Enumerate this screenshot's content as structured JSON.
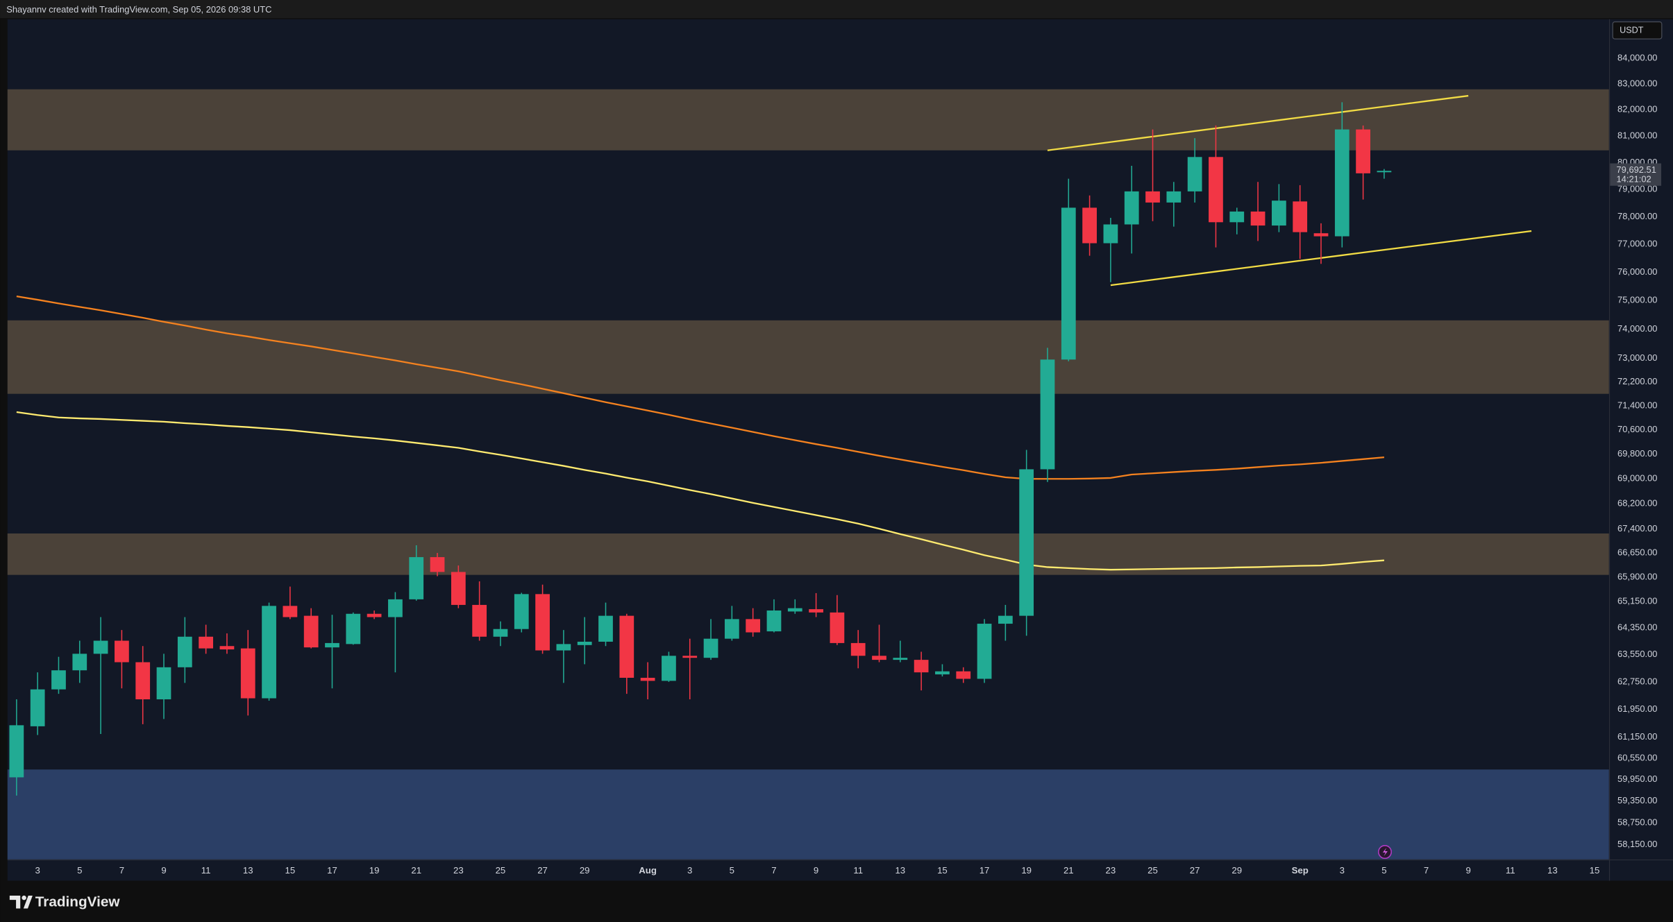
{
  "chart_data": {
    "type": "candlestick",
    "attribution": "Shayannv created with TradingView.com, Sep 05, 2026 09:38 UTC",
    "brand": "TradingView",
    "currency": "USDT",
    "last_price": {
      "value": 79692.51,
      "label": "79,692.51"
    },
    "countdown": "14:21:02",
    "log_scale": true,
    "grid": false,
    "up_color": "#22ab94",
    "down_color": "#f23645",
    "ylim": [
      57750,
      85550
    ],
    "yticks": [
      {
        "value": 84000,
        "label": "84,000.00"
      },
      {
        "value": 83000,
        "label": "83,000.00"
      },
      {
        "value": 82000,
        "label": "82,000.00"
      },
      {
        "value": 81000,
        "label": "81,000.00"
      },
      {
        "value": 80000,
        "label": "80,000.00"
      },
      {
        "value": 79000,
        "label": "79,000.00"
      },
      {
        "value": 78000,
        "label": "78,000.00"
      },
      {
        "value": 77000,
        "label": "77,000.00"
      },
      {
        "value": 76000,
        "label": "76,000.00"
      },
      {
        "value": 75000,
        "label": "75,000.00"
      },
      {
        "value": 74000,
        "label": "74,000.00"
      },
      {
        "value": 73000,
        "label": "73,000.00"
      },
      {
        "value": 72200,
        "label": "72,200.00"
      },
      {
        "value": 71400,
        "label": "71,400.00"
      },
      {
        "value": 70600,
        "label": "70,600.00"
      },
      {
        "value": 69800,
        "label": "69,800.00"
      },
      {
        "value": 69000,
        "label": "69,000.00"
      },
      {
        "value": 68200,
        "label": "68,200.00"
      },
      {
        "value": 67400,
        "label": "67,400.00"
      },
      {
        "value": 66650,
        "label": "66,650.00"
      },
      {
        "value": 65900,
        "label": "65,900.00"
      },
      {
        "value": 65150,
        "label": "65,150.00"
      },
      {
        "value": 64350,
        "label": "64,350.00"
      },
      {
        "value": 63550,
        "label": "63,550.00"
      },
      {
        "value": 62750,
        "label": "62,750.00"
      },
      {
        "value": 61950,
        "label": "61,950.00"
      },
      {
        "value": 61150,
        "label": "61,150.00"
      },
      {
        "value": 60550,
        "label": "60,550.00"
      },
      {
        "value": 59950,
        "label": "59,950.00"
      },
      {
        "value": 59350,
        "label": "59,350.00"
      },
      {
        "value": 58750,
        "label": "58,750.00"
      },
      {
        "value": 58150,
        "label": "58,150.00"
      }
    ],
    "categories": [
      null,
      "3",
      null,
      "5",
      null,
      "7",
      null,
      "9",
      null,
      "11",
      null,
      "13",
      null,
      "15",
      null,
      "17",
      null,
      "19",
      null,
      "21",
      null,
      "23",
      null,
      "25",
      null,
      "27",
      null,
      "29",
      null,
      null,
      "Aug",
      null,
      "3",
      null,
      "5",
      null,
      "7",
      null,
      "9",
      null,
      "11",
      null,
      "13",
      null,
      "15",
      null,
      "17",
      null,
      "19",
      null,
      "21",
      null,
      "23",
      null,
      "25",
      null,
      "27",
      null,
      "29",
      null,
      null,
      "Sep",
      null,
      "3",
      null,
      "5",
      null,
      "7",
      null,
      "9",
      null,
      "11",
      null,
      "13",
      null,
      "15"
    ],
    "open": [
      60010,
      61460,
      62530,
      63090,
      63580,
      63970,
      63330,
      62240,
      63180,
      64090,
      63810,
      63740,
      62270,
      65020,
      64720,
      63770,
      63870,
      64780,
      64680,
      65220,
      66520,
      66060,
      65050,
      64090,
      64320,
      65380,
      63680,
      63840,
      63940,
      64720,
      62870,
      62780,
      63520,
      63460,
      64030,
      64620,
      64250,
      64850,
      64920,
      64820,
      63900,
      63520,
      63400,
      63400,
      62970,
      63060,
      62840,
      64480,
      64720,
      69310,
      72960,
      78330,
      77040,
      77720,
      78930,
      78520,
      78930,
      80210,
      77800,
      78190,
      77680,
      78560,
      77400,
      77290,
      81250,
      79640,
      null,
      null,
      null,
      null,
      null,
      null,
      null,
      null,
      null,
      null
    ],
    "high": [
      62240,
      63030,
      63490,
      63970,
      64680,
      64290,
      63810,
      63580,
      64680,
      64450,
      64190,
      64290,
      65120,
      65610,
      64950,
      64750,
      64820,
      64880,
      65440,
      66890,
      66650,
      66260,
      65770,
      64550,
      65420,
      65670,
      64290,
      64680,
      65120,
      64780,
      63330,
      63640,
      64030,
      64620,
      65020,
      64950,
      65220,
      65220,
      65410,
      65350,
      64290,
      64450,
      63970,
      63640,
      63270,
      63180,
      64620,
      65050,
      69940,
      73360,
      79400,
      78780,
      77960,
      79880,
      81250,
      79280,
      80920,
      81400,
      78330,
      79280,
      79200,
      79160,
      77760,
      82290,
      81400,
      79760,
      null,
      null,
      null,
      null,
      null,
      null,
      null,
      null,
      null,
      null
    ],
    "low": [
      59500,
      61210,
      62400,
      62720,
      61240,
      62560,
      61520,
      61670,
      62720,
      63580,
      63580,
      61770,
      62200,
      64620,
      63740,
      62560,
      63850,
      64620,
      63030,
      65180,
      65930,
      64950,
      63970,
      63810,
      64220,
      63580,
      62720,
      63270,
      63810,
      62400,
      62240,
      62750,
      62240,
      63400,
      63970,
      64090,
      64220,
      64780,
      64680,
      63840,
      63150,
      63330,
      63330,
      62500,
      62910,
      62720,
      62720,
      63970,
      64120,
      68900,
      72900,
      76590,
      75650,
      76670,
      77840,
      77640,
      78520,
      76890,
      77360,
      77120,
      77440,
      76480,
      76300,
      76890,
      78630,
      79400,
      null,
      null,
      null,
      null,
      null,
      null,
      null,
      null,
      null,
      null
    ],
    "close": [
      61490,
      62530,
      63090,
      63580,
      63970,
      63330,
      62240,
      63180,
      64090,
      63740,
      63710,
      62270,
      65020,
      64680,
      63770,
      63900,
      64780,
      64680,
      65220,
      66520,
      66060,
      65050,
      64090,
      64320,
      65380,
      63680,
      63870,
      63940,
      64720,
      62870,
      62780,
      63520,
      63460,
      64030,
      64620,
      64220,
      64880,
      64950,
      64820,
      63900,
      63520,
      63400,
      63460,
      63030,
      63060,
      62840,
      64480,
      64720,
      69310,
      72960,
      78330,
      77040,
      77720,
      78930,
      78520,
      78930,
      80210,
      77800,
      78190,
      77680,
      78590,
      77440,
      77290,
      81250,
      79600,
      79692.51,
      null,
      null,
      null,
      null,
      null,
      null,
      null,
      null,
      null,
      null
    ],
    "zones": [
      {
        "from": 82790,
        "to": 80460,
        "color": "#4b4239"
      },
      {
        "from": 74310,
        "to": 71800,
        "color": "#4b4239"
      },
      {
        "from": 67260,
        "to": 65970,
        "color": "#4b4239"
      },
      {
        "from": 60230,
        "to": 57750,
        "color": "#2b3f66"
      }
    ],
    "lines": [
      {
        "color": "#f5821f",
        "values": [
          75150,
          75030,
          74900,
          74780,
          74660,
          74530,
          74400,
          74260,
          74130,
          73990,
          73860,
          73750,
          73630,
          73520,
          73410,
          73290,
          73170,
          73050,
          72930,
          72800,
          72680,
          72560,
          72410,
          72260,
          72120,
          71970,
          71820,
          71670,
          71520,
          71380,
          71240,
          71100,
          70950,
          70810,
          70670,
          70530,
          70390,
          70260,
          70130,
          70010,
          69880,
          69750,
          69630,
          69510,
          69390,
          69280,
          69160,
          69050,
          69000,
          69000,
          69000,
          69010,
          69030,
          69140,
          69180,
          69220,
          69260,
          69290,
          69330,
          69380,
          69430,
          69470,
          69520,
          69580,
          69640,
          69700,
          null,
          null,
          null,
          null,
          null,
          null,
          null,
          null,
          null,
          null
        ]
      },
      {
        "color": "#ffeb70",
        "values": [
          71190,
          71090,
          71010,
          70980,
          70960,
          70930,
          70900,
          70870,
          70820,
          70780,
          70730,
          70690,
          70640,
          70590,
          70520,
          70450,
          70380,
          70320,
          70250,
          70170,
          70090,
          70010,
          69890,
          69780,
          69660,
          69540,
          69420,
          69290,
          69170,
          69040,
          68920,
          68780,
          68640,
          68510,
          68370,
          68230,
          68100,
          67970,
          67840,
          67710,
          67570,
          67410,
          67240,
          67080,
          66910,
          66750,
          66580,
          66440,
          66290,
          66210,
          66180,
          66150,
          66130,
          66140,
          66150,
          66160,
          66170,
          66180,
          66200,
          66210,
          66230,
          66250,
          66260,
          66310,
          66370,
          66420,
          null,
          null,
          null,
          null,
          null,
          null,
          null,
          null,
          null,
          null
        ]
      },
      {
        "color": "#f2dc45",
        "values": [
          null,
          null,
          null,
          null,
          null,
          null,
          null,
          null,
          null,
          null,
          null,
          null,
          null,
          null,
          null,
          null,
          null,
          null,
          null,
          null,
          null,
          null,
          null,
          null,
          null,
          null,
          null,
          null,
          null,
          null,
          null,
          null,
          null,
          null,
          null,
          null,
          null,
          null,
          null,
          null,
          null,
          null,
          null,
          null,
          null,
          null,
          null,
          null,
          null,
          80460,
          80564,
          80668,
          80772,
          80876,
          80980,
          81084,
          81188,
          81292,
          81396,
          81500,
          81604,
          81708,
          81812,
          81916,
          82020,
          82124,
          82228,
          82332,
          82436,
          82540,
          null,
          null,
          null,
          null,
          null,
          null
        ]
      },
      {
        "color": "#f2dc45",
        "values": [
          null,
          null,
          null,
          null,
          null,
          null,
          null,
          null,
          null,
          null,
          null,
          null,
          null,
          null,
          null,
          null,
          null,
          null,
          null,
          null,
          null,
          null,
          null,
          null,
          null,
          null,
          null,
          null,
          null,
          null,
          null,
          null,
          null,
          null,
          null,
          null,
          null,
          null,
          null,
          null,
          null,
          null,
          null,
          null,
          null,
          null,
          null,
          null,
          null,
          null,
          null,
          null,
          75540,
          75637,
          75734,
          75831,
          75928,
          76025,
          76122,
          76219,
          76316,
          76413,
          76510,
          76607,
          76704,
          76801,
          76898,
          76995,
          77092,
          77189,
          77286,
          77383,
          77480,
          null,
          null,
          null
        ]
      }
    ]
  }
}
